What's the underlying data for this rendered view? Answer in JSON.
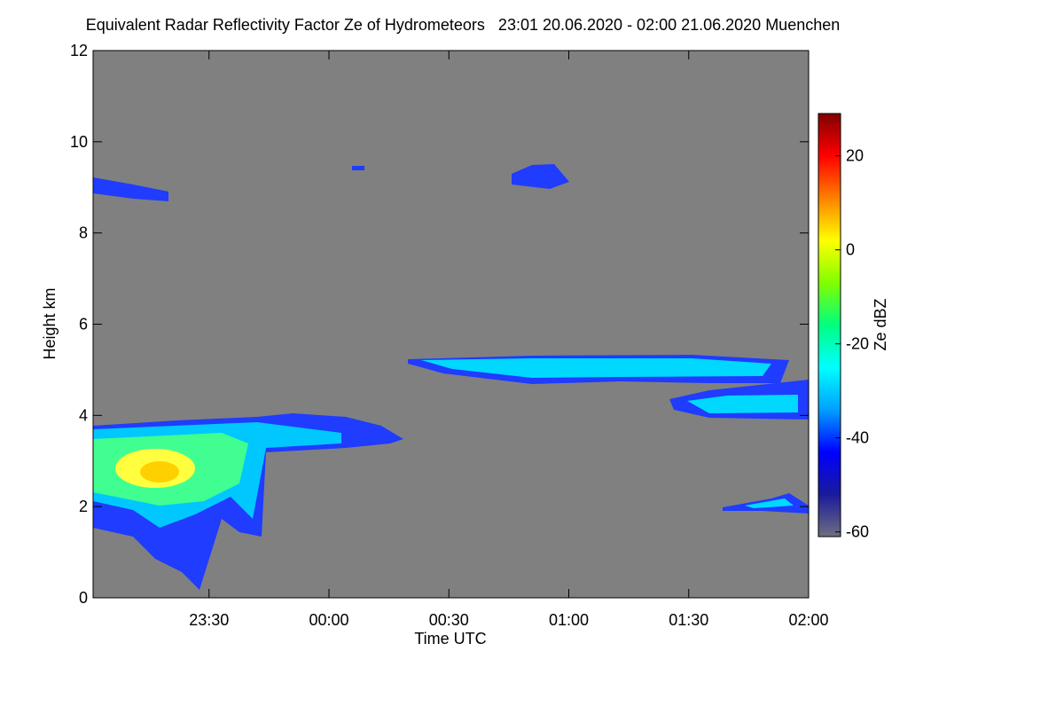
{
  "chart_data": {
    "type": "heatmap",
    "title": "Equivalent Radar Reflectivity Factor Ze of Hydrometeors   23:01 20.06.2020 - 02:00 21.06.2020 Muenchen",
    "xlabel": "Time UTC",
    "ylabel": "Height km",
    "colorbar_label": "Ze dBZ",
    "xlim": [
      23.0167,
      26.0
    ],
    "xticks": [
      {
        "value": 23.5,
        "label": "23:30"
      },
      {
        "value": 24.0,
        "label": "00:00"
      },
      {
        "value": 24.5,
        "label": "00:30"
      },
      {
        "value": 25.0,
        "label": "01:00"
      },
      {
        "value": 25.5,
        "label": "01:30"
      },
      {
        "value": 26.0,
        "label": "02:00"
      }
    ],
    "ylim": [
      0,
      12
    ],
    "yticks": [
      0,
      2,
      4,
      6,
      8,
      10,
      12
    ],
    "clim": [
      -61,
      29
    ],
    "cticks": [
      20,
      0,
      -20,
      -40,
      -60
    ],
    "background": "#808080",
    "colorscale": [
      "#6e6e80",
      "#1a1a9c",
      "#0000ff",
      "#00a0ff",
      "#00ffff",
      "#00ff80",
      "#80ff00",
      "#ffff00",
      "#ff8000",
      "#ff0000",
      "#800000"
    ]
  }
}
